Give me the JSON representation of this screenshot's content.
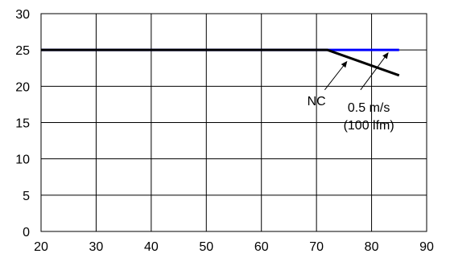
{
  "chart_data": {
    "type": "line",
    "title": "",
    "xlabel": "",
    "ylabel": "",
    "xlim": [
      20,
      90
    ],
    "ylim": [
      0,
      30
    ],
    "xticks": [
      20,
      30,
      40,
      50,
      60,
      70,
      80,
      90
    ],
    "yticks": [
      0,
      5,
      10,
      15,
      20,
      25,
      30
    ],
    "grid": true,
    "legend": "none",
    "series": [
      {
        "color": "#0000ff",
        "x": [
          20,
          72,
          85
        ],
        "y": [
          25,
          25,
          25
        ]
      },
      {
        "color": "#000000",
        "x": [
          20,
          72,
          85
        ],
        "y": [
          25,
          25,
          21.5
        ]
      }
    ],
    "annotations": [
      {
        "lines": [
          "NC"
        ],
        "text_at": [
          70,
          17.4
        ],
        "arrow_from": [
          71.5,
          19.5
        ],
        "arrow_to": [
          75.5,
          23.4
        ]
      },
      {
        "lines": [
          "0.5 m/s",
          "(100 lfm)"
        ],
        "text_at": [
          79.5,
          16.5
        ],
        "arrow_from": [
          78,
          19.5
        ],
        "arrow_to": [
          83,
          24.6
        ]
      }
    ]
  }
}
